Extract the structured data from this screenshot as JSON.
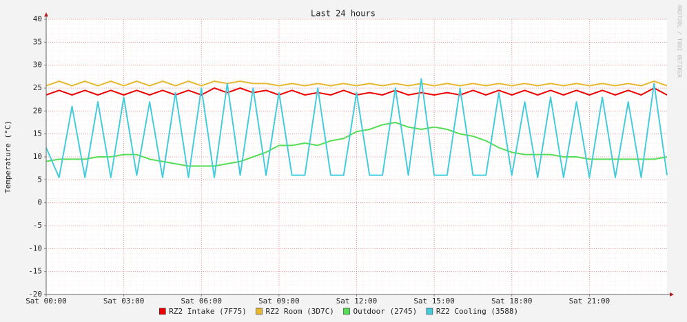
{
  "chart_data": {
    "type": "line",
    "title": "Last 24 hours",
    "y_label": "Temperature (°C)",
    "watermark": "RRDTOOL / TOBI OETIKER",
    "x": [
      0,
      0.5,
      1,
      1.5,
      2,
      2.5,
      3,
      3.5,
      4,
      4.5,
      5,
      5.5,
      6,
      6.5,
      7,
      7.5,
      8,
      8.5,
      9,
      9.5,
      10,
      10.5,
      11,
      11.5,
      12,
      12.5,
      13,
      13.5,
      14,
      14.5,
      15,
      15.5,
      16,
      16.5,
      17,
      17.5,
      18,
      18.5,
      19,
      19.5,
      20,
      20.5,
      21,
      21.5,
      22,
      22.5,
      23,
      23.5,
      24
    ],
    "xlim": [
      0,
      24
    ],
    "xticks": [
      {
        "value": 0,
        "label": "Sat 00:00"
      },
      {
        "value": 3,
        "label": "Sat 03:00"
      },
      {
        "value": 6,
        "label": "Sat 06:00"
      },
      {
        "value": 9,
        "label": "Sat 09:00"
      },
      {
        "value": 12,
        "label": "Sat 12:00"
      },
      {
        "value": 15,
        "label": "Sat 15:00"
      },
      {
        "value": 18,
        "label": "Sat 18:00"
      },
      {
        "value": 21,
        "label": "Sat 21:00"
      }
    ],
    "ylim": [
      -20,
      40
    ],
    "yticks": [
      -20,
      -15,
      -10,
      -5,
      0,
      5,
      10,
      15,
      20,
      25,
      30,
      35,
      40
    ],
    "grid": true,
    "series": [
      {
        "name": "RZ2 Intake (7F75)",
        "color": "#ee0000",
        "values": [
          23.5,
          24.5,
          23.5,
          24.5,
          23.5,
          24.5,
          23.5,
          24.5,
          23.5,
          24.5,
          23.5,
          24.5,
          23.5,
          25,
          24,
          25,
          24,
          24.5,
          23.5,
          24.5,
          23.5,
          24,
          23.5,
          24.5,
          23.5,
          24,
          23.5,
          24.5,
          23.5,
          24,
          23.5,
          24,
          23.5,
          24.5,
          23.5,
          24.5,
          23.5,
          24.5,
          23.5,
          24.5,
          23.5,
          24.5,
          23.5,
          24.5,
          23.5,
          24.5,
          23.5,
          25,
          23.5
        ]
      },
      {
        "name": "RZ2 Room (3D7C)",
        "color": "#e8b830",
        "values": [
          25.5,
          26.5,
          25.5,
          26.5,
          25.5,
          26.5,
          25.5,
          26.5,
          25.5,
          26.5,
          25.5,
          26.5,
          25.5,
          26.5,
          26,
          26.5,
          26,
          26,
          25.5,
          26,
          25.5,
          26,
          25.5,
          26,
          25.5,
          26,
          25.5,
          26,
          25.5,
          26,
          25.5,
          26,
          25.5,
          26,
          25.5,
          26,
          25.5,
          26,
          25.5,
          26,
          25.5,
          26,
          25.5,
          26,
          25.5,
          26,
          25.5,
          26.5,
          25.5
        ]
      },
      {
        "name": "Outdoor (2745)",
        "color": "#55dd55",
        "values": [
          9,
          9.5,
          9.5,
          9.5,
          10,
          10,
          10.5,
          10.5,
          9.5,
          9,
          8.5,
          8,
          8,
          8,
          8.5,
          9,
          10,
          11,
          12.5,
          12.5,
          13,
          12.5,
          13.5,
          14,
          15.5,
          16,
          17,
          17.5,
          16.5,
          16,
          16.5,
          16,
          15,
          14.5,
          13.5,
          12,
          11,
          10.5,
          10.5,
          10.5,
          10,
          10,
          9.5,
          9.5,
          9.5,
          9.5,
          9.5,
          9.5,
          10
        ]
      },
      {
        "name": "RZ2 Cooling (3588)",
        "color": "#44ccdd",
        "values": [
          12,
          5.5,
          21,
          5.5,
          22,
          5.5,
          23,
          6,
          22,
          5.5,
          24,
          5.5,
          25,
          5.5,
          26,
          6,
          25,
          6,
          24,
          6,
          6,
          25,
          6,
          6,
          24,
          6,
          6,
          25,
          6,
          27,
          6,
          6,
          25,
          6,
          6,
          24,
          6,
          22,
          5.5,
          23,
          5.5,
          22,
          5.5,
          23,
          5.5,
          22,
          5.5,
          26,
          6
        ]
      }
    ]
  }
}
